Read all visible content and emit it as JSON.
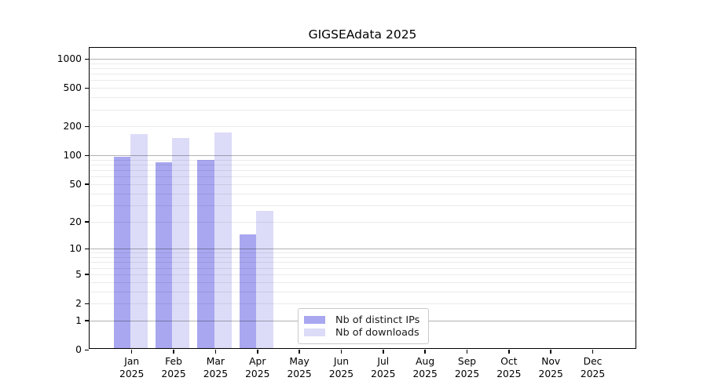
{
  "figure": {
    "background": "#ffffff"
  },
  "chart_data": {
    "type": "bar",
    "title": "GIGSEAdata 2025",
    "xlabel": "",
    "ylabel": "",
    "scale": "log1p",
    "ylim": [
      0,
      1300
    ],
    "grid": "horizontal",
    "legend_position": "bottom-center",
    "categories": [
      "Jan",
      "Feb",
      "Mar",
      "Apr",
      "May",
      "Jun",
      "Jul",
      "Aug",
      "Sep",
      "Oct",
      "Nov",
      "Dec"
    ],
    "category_year": "2025",
    "y_ticks": [
      1000,
      500,
      200,
      100,
      50,
      20,
      10,
      5,
      2,
      1,
      0
    ],
    "minor_grid_values": [
      2,
      3,
      4,
      5,
      6,
      7,
      8,
      9,
      20,
      30,
      40,
      50,
      60,
      70,
      80,
      90,
      200,
      300,
      400,
      500,
      600,
      700,
      800,
      900
    ],
    "major_grid_values": [
      1,
      10,
      100,
      1000
    ],
    "series": [
      {
        "name": "Nb of distinct IPs",
        "color": "#a8a7f0",
        "values": [
          93,
          81,
          86,
          14,
          0,
          0,
          0,
          0,
          0,
          0,
          0,
          0
        ]
      },
      {
        "name": "Nb of downloads",
        "color": "#dcdcf8",
        "values": [
          160,
          147,
          168,
          25,
          0,
          0,
          0,
          0,
          0,
          0,
          0,
          0
        ]
      }
    ],
    "colors": {
      "axis": "#000000",
      "major_grid": "rgba(0,0,0,0.30)",
      "minor_grid": "rgba(0,0,0,0.08)",
      "legend_border": "#c9c9c9"
    }
  }
}
